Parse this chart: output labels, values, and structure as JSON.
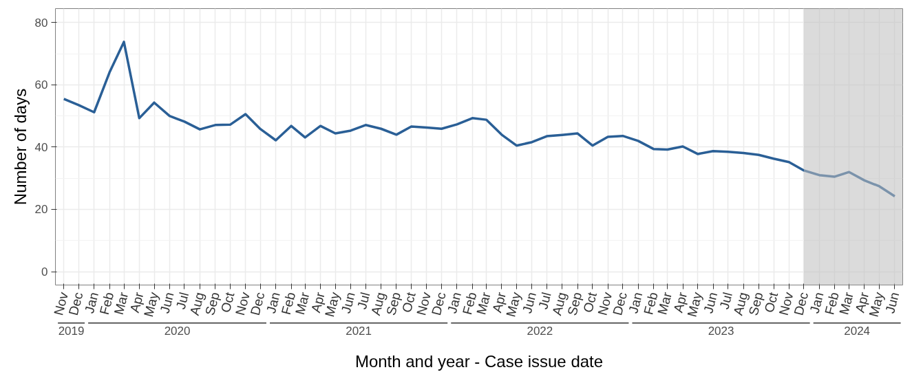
{
  "chart_data": {
    "type": "line",
    "xlabel": "Month and year - Case issue date",
    "ylabel": "Number of days",
    "x": [
      "2019-11",
      "2019-12",
      "2020-01",
      "2020-02",
      "2020-03",
      "2020-04",
      "2020-05",
      "2020-06",
      "2020-07",
      "2020-08",
      "2020-09",
      "2020-10",
      "2020-11",
      "2020-12",
      "2021-01",
      "2021-02",
      "2021-03",
      "2021-04",
      "2021-05",
      "2021-06",
      "2021-07",
      "2021-08",
      "2021-09",
      "2021-10",
      "2021-11",
      "2021-12",
      "2022-01",
      "2022-02",
      "2022-03",
      "2022-04",
      "2022-05",
      "2022-06",
      "2022-07",
      "2022-08",
      "2022-09",
      "2022-10",
      "2022-11",
      "2022-12",
      "2023-01",
      "2023-02",
      "2023-03",
      "2023-04",
      "2023-05",
      "2023-06",
      "2023-07",
      "2023-08",
      "2023-09",
      "2023-10",
      "2023-11",
      "2023-12",
      "2024-01",
      "2024-02",
      "2024-03",
      "2024-04",
      "2024-05",
      "2024-06"
    ],
    "series": [
      {
        "color": "#2a5f96",
        "values": [
          55.5,
          53.5,
          51.2,
          64,
          73.8,
          49.3,
          54.3,
          50,
          48.2,
          45.7,
          47.1,
          47.2,
          50.6,
          45.8,
          42.2,
          46.8,
          43.1,
          46.8,
          44.4,
          45.3,
          47.1,
          45.9,
          44,
          46.6,
          46.3,
          45.9,
          47.3,
          49.3,
          48.8,
          44,
          40.5,
          41.6,
          43.5,
          43.9,
          44.4,
          40.5,
          43.3,
          43.6,
          42,
          39.4,
          39.2,
          40.2,
          37.8,
          38.7,
          38.5,
          38.1,
          37.5,
          36.3,
          35.2,
          32.5,
          31,
          30.5,
          32,
          29.3,
          27.4,
          24.2
        ]
      }
    ],
    "xlim": [
      "2019-10-15",
      "2024-06-17"
    ],
    "ylim": [
      -4.3,
      84.5
    ],
    "yticks": [
      0,
      20,
      40,
      60,
      80
    ],
    "xticks": [
      {
        "value": "2019-11",
        "label": "Nov"
      },
      {
        "value": "2019-12",
        "label": "Dec"
      },
      {
        "value": "2020-01",
        "label": "Jan"
      },
      {
        "value": "2020-02",
        "label": "Feb"
      },
      {
        "value": "2020-03",
        "label": "Mar"
      },
      {
        "value": "2020-04",
        "label": "Apr"
      },
      {
        "value": "2020-05",
        "label": "May"
      },
      {
        "value": "2020-06",
        "label": "Jun"
      },
      {
        "value": "2020-07",
        "label": "Jul"
      },
      {
        "value": "2020-08",
        "label": "Aug"
      },
      {
        "value": "2020-09",
        "label": "Sep"
      },
      {
        "value": "2020-10",
        "label": "Oct"
      },
      {
        "value": "2020-11",
        "label": "Nov"
      },
      {
        "value": "2020-12",
        "label": "Dec"
      },
      {
        "value": "2021-01",
        "label": "Jan"
      },
      {
        "value": "2021-02",
        "label": "Feb"
      },
      {
        "value": "2021-03",
        "label": "Mar"
      },
      {
        "value": "2021-04",
        "label": "Apr"
      },
      {
        "value": "2021-05",
        "label": "May"
      },
      {
        "value": "2021-06",
        "label": "Jun"
      },
      {
        "value": "2021-07",
        "label": "Jul"
      },
      {
        "value": "2021-08",
        "label": "Aug"
      },
      {
        "value": "2021-09",
        "label": "Sep"
      },
      {
        "value": "2021-10",
        "label": "Oct"
      },
      {
        "value": "2021-11",
        "label": "Nov"
      },
      {
        "value": "2021-12",
        "label": "Dec"
      },
      {
        "value": "2022-01",
        "label": "Jan"
      },
      {
        "value": "2022-02",
        "label": "Feb"
      },
      {
        "value": "2022-03",
        "label": "Mar"
      },
      {
        "value": "2022-04",
        "label": "Apr"
      },
      {
        "value": "2022-05",
        "label": "May"
      },
      {
        "value": "2022-06",
        "label": "Jun"
      },
      {
        "value": "2022-07",
        "label": "Jul"
      },
      {
        "value": "2022-08",
        "label": "Aug"
      },
      {
        "value": "2022-09",
        "label": "Sep"
      },
      {
        "value": "2022-10",
        "label": "Oct"
      },
      {
        "value": "2022-11",
        "label": "Nov"
      },
      {
        "value": "2022-12",
        "label": "Dec"
      },
      {
        "value": "2023-01",
        "label": "Jan"
      },
      {
        "value": "2023-02",
        "label": "Feb"
      },
      {
        "value": "2023-03",
        "label": "Mar"
      },
      {
        "value": "2023-04",
        "label": "Apr"
      },
      {
        "value": "2023-05",
        "label": "May"
      },
      {
        "value": "2023-06",
        "label": "Jun"
      },
      {
        "value": "2023-07",
        "label": "Jul"
      },
      {
        "value": "2023-08",
        "label": "Aug"
      },
      {
        "value": "2023-09",
        "label": "Sep"
      },
      {
        "value": "2023-10",
        "label": "Oct"
      },
      {
        "value": "2023-11",
        "label": "Nov"
      },
      {
        "value": "2023-12",
        "label": "Dec"
      },
      {
        "value": "2024-01",
        "label": "Jan"
      },
      {
        "value": "2024-02",
        "label": "Feb"
      },
      {
        "value": "2024-03",
        "label": "Mar"
      },
      {
        "value": "2024-04",
        "label": "Apr"
      },
      {
        "value": "2024-05",
        "label": "May"
      },
      {
        "value": "2024-06",
        "label": "Jun"
      }
    ],
    "annotations": [
      "2019",
      "2020",
      "2021",
      "2022",
      "2023",
      "2024"
    ],
    "bands": [
      {
        "axis": "x",
        "from": "2023-12",
        "to": "2024-06-17",
        "color": "#bebebe"
      }
    ],
    "grid": true,
    "line_style": "solid",
    "marker": "none"
  }
}
